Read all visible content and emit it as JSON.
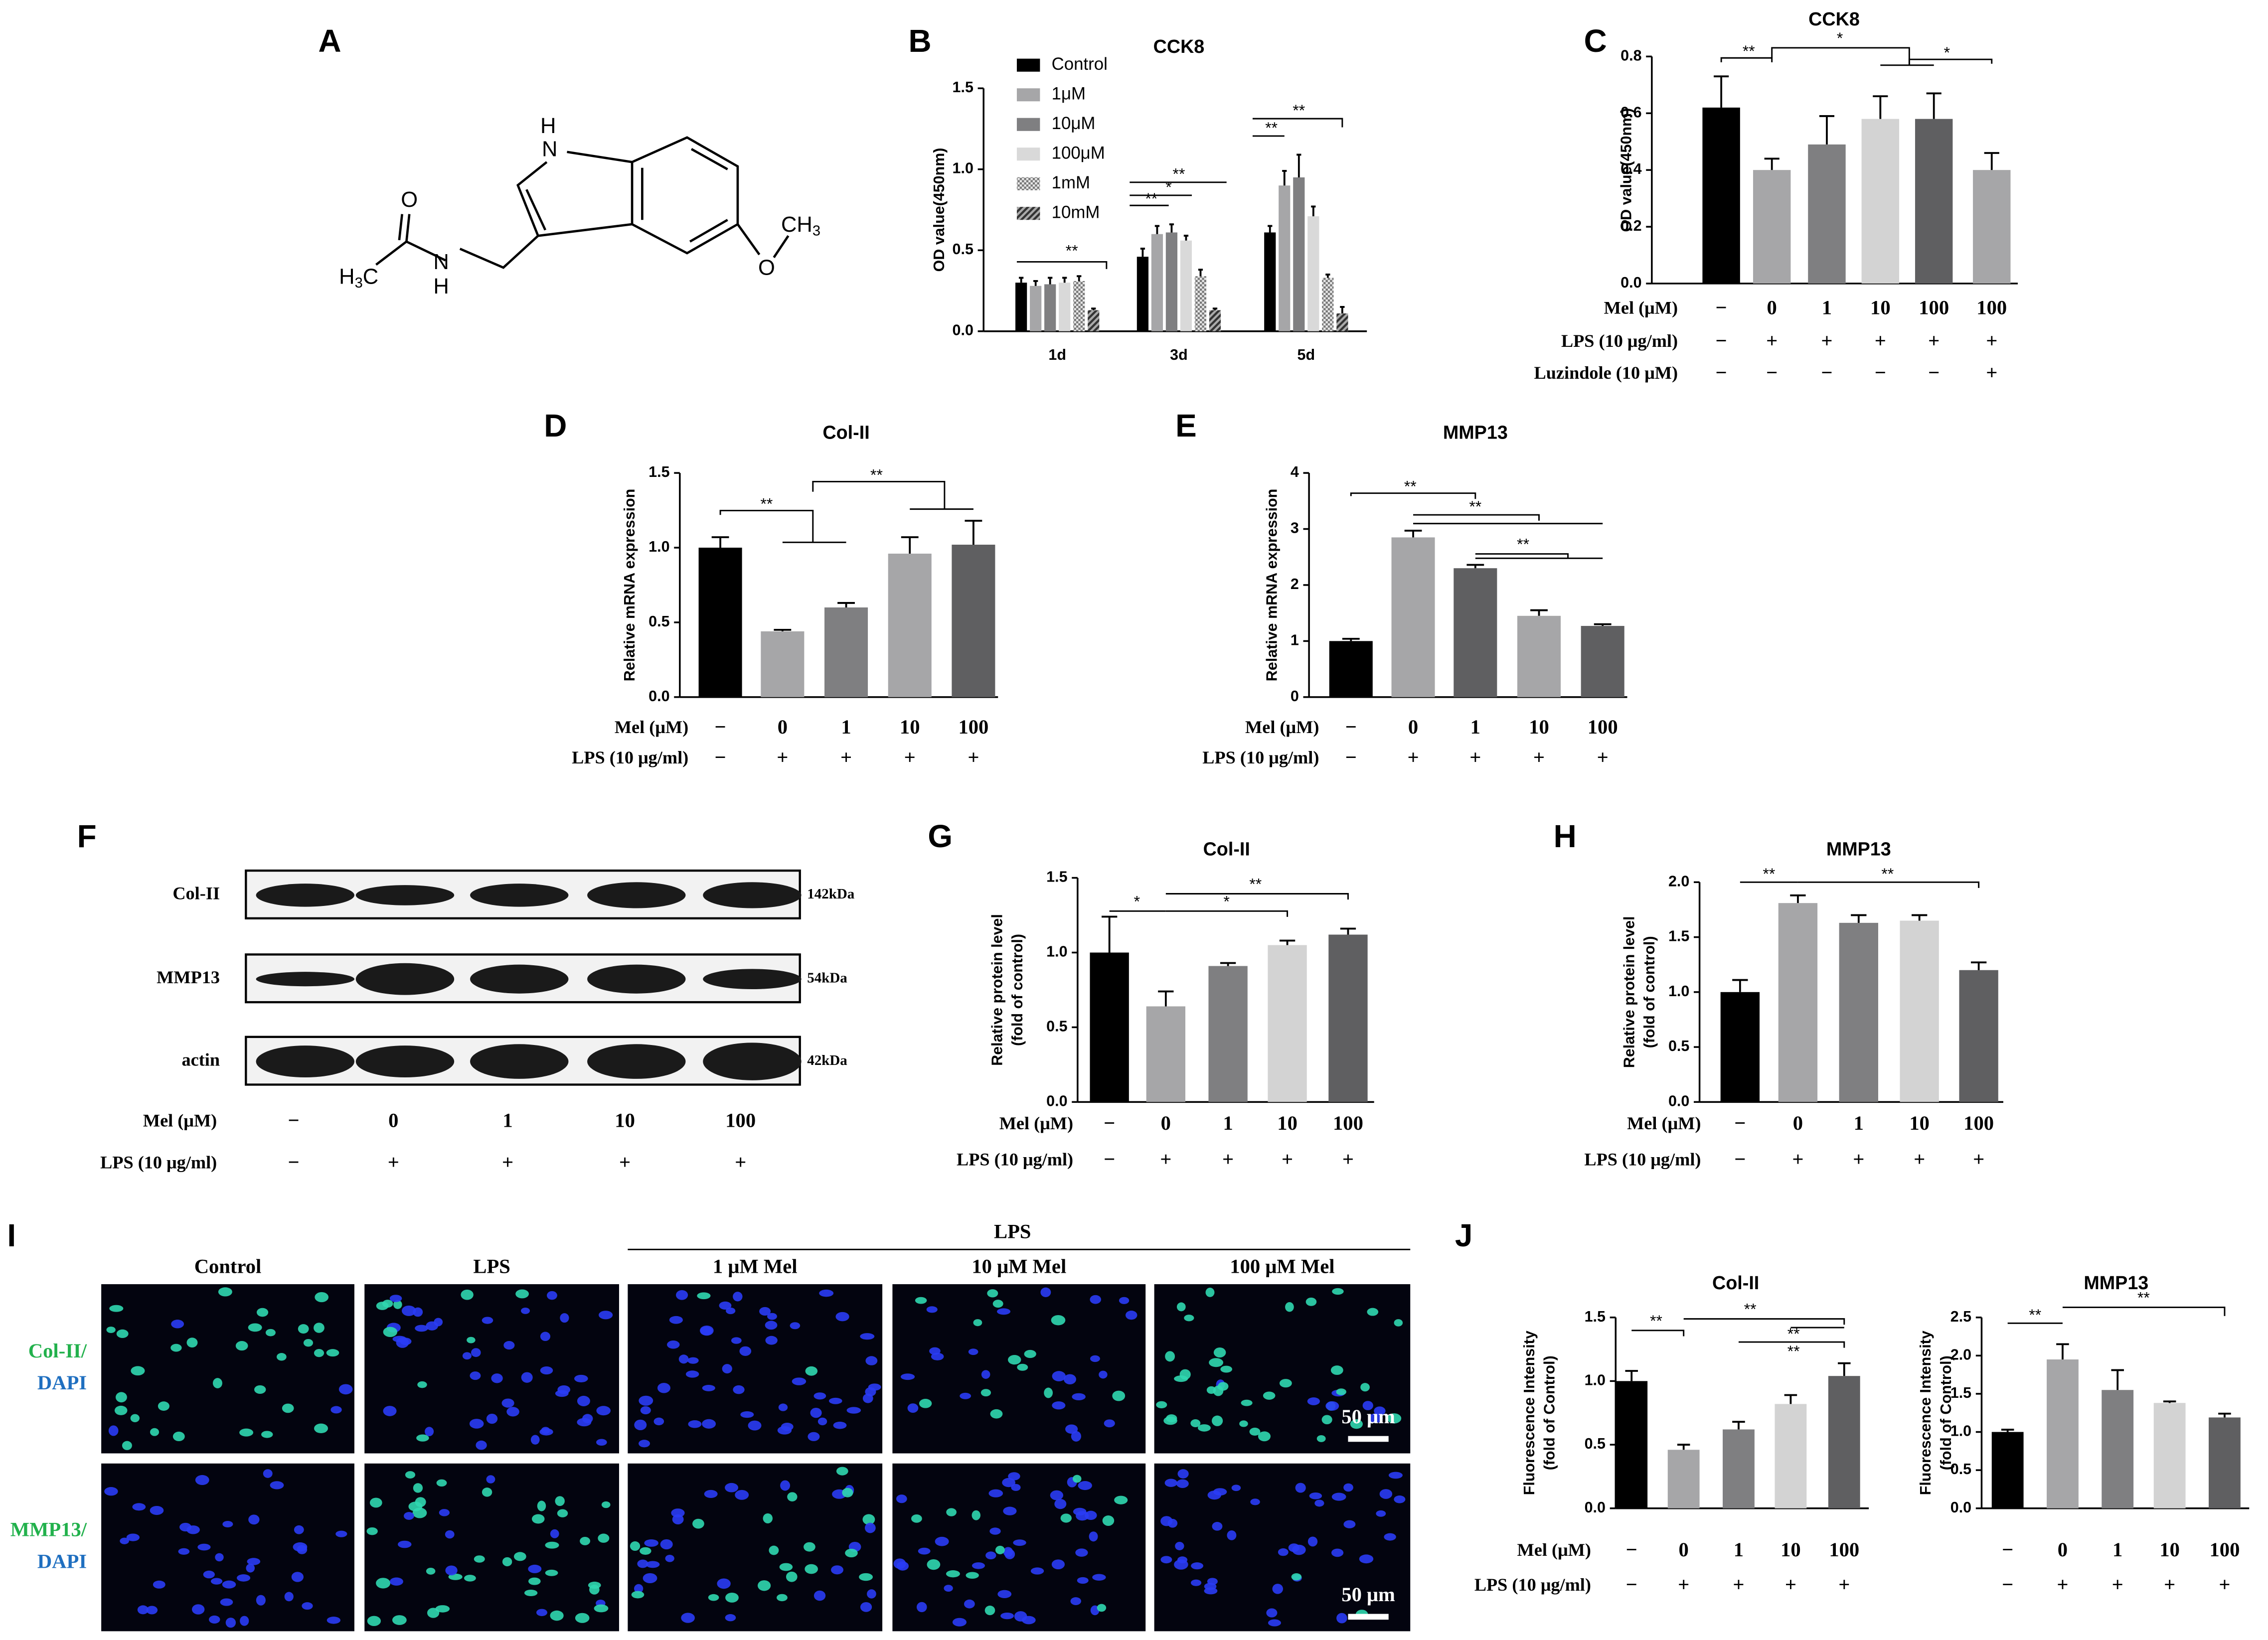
{
  "chart_data": [
    {
      "type": "bar",
      "title": "CCK8",
      "ylabel": "OD value(450nm)",
      "categories": [
        "1d",
        "3d",
        "5d"
      ],
      "series": [
        {
          "name": "Control",
          "color": "#000000",
          "values": [
            0.3,
            0.46,
            0.61
          ],
          "errors": [
            0.03,
            0.05,
            0.04
          ]
        },
        {
          "name": "1μM",
          "color": "#a6a6a8",
          "values": [
            0.28,
            0.6,
            0.9
          ],
          "errors": [
            0.03,
            0.05,
            0.09
          ]
        },
        {
          "name": "10μM",
          "color": "#7f7f81",
          "values": [
            0.29,
            0.61,
            0.95
          ],
          "errors": [
            0.04,
            0.05,
            0.14
          ]
        },
        {
          "name": "100μM",
          "color": "#d9d9d9",
          "values": [
            0.3,
            0.56,
            0.71
          ],
          "errors": [
            0.03,
            0.03,
            0.06
          ]
        },
        {
          "name": "1mM",
          "color": "#9a9a9a",
          "pattern": "crosshatch",
          "values": [
            0.31,
            0.34,
            0.33
          ],
          "errors": [
            0.03,
            0.04,
            0.02
          ]
        },
        {
          "name": "10mM",
          "color": "#555555",
          "pattern": "diagonal",
          "values": [
            0.13,
            0.13,
            0.11
          ],
          "errors": [
            0.01,
            0.01,
            0.04
          ]
        }
      ],
      "ylim": [
        0,
        1.5
      ],
      "yticks": [
        {
          "value": 0,
          "label": "0.0"
        },
        0.5,
        {
          "value": 1,
          "label": "1.0"
        },
        1.5
      ],
      "annotations": [
        "**",
        "**",
        "*",
        "**",
        "**",
        "**"
      ]
    },
    {
      "type": "bar",
      "title": "CCK8",
      "ylabel": "OD value(450nm)",
      "values": [
        0.62,
        0.4,
        0.49,
        0.58,
        0.58,
        0.4
      ],
      "errors": [
        0.11,
        0.04,
        0.1,
        0.08,
        0.09,
        0.06
      ],
      "colors": [
        "#000000",
        "#a6a6a8",
        "#7f7f81",
        "#d3d3d3",
        "#5f5f61",
        "#a6a6a8"
      ],
      "ylim": [
        0,
        0.8
      ],
      "yticks": [
        {
          "value": 0,
          "label": "0.0"
        },
        0.2,
        0.4,
        0.6,
        0.8
      ],
      "conditions": [
        {
          "label": "Mel (μM)",
          "cells": [
            "−",
            "0",
            "1",
            "10",
            "100",
            "100"
          ]
        },
        {
          "label": "LPS (10 μg/ml)",
          "cells": [
            "−",
            "+",
            "+",
            "+",
            "+",
            "+"
          ]
        },
        {
          "label": "Luzindole (10 μM)",
          "cells": [
            "−",
            "−",
            "−",
            "−",
            "−",
            "+"
          ]
        }
      ],
      "annotations": [
        "**",
        "*",
        "*"
      ]
    },
    {
      "type": "bar",
      "title": "Col-II",
      "ylabel": "Relative mRNA expression",
      "values": [
        1.0,
        0.44,
        0.6,
        0.96,
        1.02
      ],
      "errors": [
        0.07,
        0.01,
        0.03,
        0.11,
        0.16
      ],
      "colors": [
        "#000000",
        "#a6a6a8",
        "#7f7f81",
        "#a6a6a8",
        "#5f5f61"
      ],
      "ylim": [
        0,
        1.5
      ],
      "yticks": [
        {
          "value": 0,
          "label": "0.0"
        },
        0.5,
        {
          "value": 1,
          "label": "1.0"
        },
        1.5
      ],
      "conditions": [
        {
          "label": "Mel (μM)",
          "cells": [
            "−",
            "0",
            "1",
            "10",
            "100"
          ]
        },
        {
          "label": "LPS (10 μg/ml)",
          "cells": [
            "−",
            "+",
            "+",
            "+",
            "+"
          ]
        }
      ],
      "annotations": [
        "**",
        "**"
      ]
    },
    {
      "type": "bar",
      "title": "MMP13",
      "ylabel": "Relative mRNA expression",
      "values": [
        1.0,
        2.85,
        2.3,
        1.45,
        1.27
      ],
      "errors": [
        0.04,
        0.12,
        0.06,
        0.1,
        0.03
      ],
      "colors": [
        "#000000",
        "#a6a6a8",
        "#5f5f61",
        "#a6a6a8",
        "#5f5f61"
      ],
      "ylim": [
        0,
        4
      ],
      "yticks": [
        0,
        1,
        2,
        3,
        4
      ],
      "conditions": [
        {
          "label": "Mel (μM)",
          "cells": [
            "−",
            "0",
            "1",
            "10",
            "100"
          ]
        },
        {
          "label": "LPS (10 μg/ml)",
          "cells": [
            "−",
            "+",
            "+",
            "+",
            "+"
          ]
        }
      ],
      "annotations": [
        "**",
        "**",
        "**"
      ]
    },
    {
      "type": "bar",
      "title": "Col-II",
      "ylabel": [
        "Relative protein level",
        "(fold of control)"
      ],
      "values": [
        1.0,
        0.64,
        0.91,
        1.05,
        1.12
      ],
      "errors": [
        0.24,
        0.1,
        0.02,
        0.03,
        0.04
      ],
      "colors": [
        "#000000",
        "#a6a6a8",
        "#7f7f81",
        "#d3d3d3",
        "#5f5f61"
      ],
      "ylim": [
        0,
        1.5
      ],
      "yticks": [
        {
          "value": 0,
          "label": "0.0"
        },
        0.5,
        {
          "value": 1,
          "label": "1.0"
        },
        1.5
      ],
      "conditions": [
        {
          "label": "Mel (μM)",
          "cells": [
            "−",
            "0",
            "1",
            "10",
            "100"
          ]
        },
        {
          "label": "LPS (10 μg/ml)",
          "cells": [
            "−",
            "+",
            "+",
            "+",
            "+"
          ]
        }
      ],
      "annotations": [
        "*",
        "**",
        "*"
      ]
    },
    {
      "type": "bar",
      "title": "MMP13",
      "ylabel": [
        "Relative protein level",
        "(fold of control)"
      ],
      "values": [
        1.0,
        1.81,
        1.63,
        1.65,
        1.2
      ],
      "errors": [
        0.11,
        0.07,
        0.07,
        0.05,
        0.07
      ],
      "colors": [
        "#000000",
        "#a6a6a8",
        "#7f7f81",
        "#d3d3d3",
        "#5f5f61"
      ],
      "ylim": [
        0,
        2
      ],
      "yticks": [
        {
          "value": 0,
          "label": "0.0"
        },
        0.5,
        {
          "value": 1,
          "label": "1.0"
        },
        1.5,
        {
          "value": 2,
          "label": "2.0"
        }
      ],
      "conditions": [
        {
          "label": "Mel (μM)",
          "cells": [
            "−",
            "0",
            "1",
            "10",
            "100"
          ]
        },
        {
          "label": "LPS (10 μg/ml)",
          "cells": [
            "−",
            "+",
            "+",
            "+",
            "+"
          ]
        }
      ],
      "annotations": [
        "**",
        "**"
      ]
    },
    {
      "type": "bar",
      "title": "Col-II",
      "ylabel": [
        "Fluorescence Intensity",
        "(fold of Control)"
      ],
      "values": [
        1.0,
        0.46,
        0.62,
        0.82,
        1.04
      ],
      "errors": [
        0.08,
        0.04,
        0.06,
        0.07,
        0.1
      ],
      "colors": [
        "#000000",
        "#a6a6a8",
        "#7f7f81",
        "#d3d3d3",
        "#5f5f61"
      ],
      "ylim": [
        0,
        1.5
      ],
      "yticks": [
        {
          "value": 0,
          "label": "0.0"
        },
        0.5,
        {
          "value": 1,
          "label": "1.0"
        },
        1.5
      ],
      "conditions": [
        {
          "label": "Mel (μM)",
          "cells": [
            "−",
            "0",
            "1",
            "10",
            "100"
          ]
        },
        {
          "label": "LPS (10 μg/ml)",
          "cells": [
            "−",
            "+",
            "+",
            "+",
            "+"
          ]
        }
      ],
      "annotations": [
        "**",
        "**",
        "**",
        "**"
      ]
    },
    {
      "type": "bar",
      "title": "MMP13",
      "ylabel": [
        "Fluorescence Intensity",
        "(fold of Control)"
      ],
      "values": [
        1.0,
        1.95,
        1.55,
        1.38,
        1.19
      ],
      "errors": [
        0.03,
        0.2,
        0.26,
        0.02,
        0.05
      ],
      "colors": [
        "#000000",
        "#a6a6a8",
        "#7f7f81",
        "#d3d3d3",
        "#5f5f61"
      ],
      "ylim": [
        0,
        2.5
      ],
      "yticks": [
        {
          "value": 0,
          "label": "0.0"
        },
        0.5,
        {
          "value": 1,
          "label": "1.0"
        },
        1.5,
        {
          "value": 2,
          "label": "2.0"
        },
        2.5
      ],
      "conditions": [
        {
          "cells": [
            "−",
            "0",
            "1",
            "10",
            "100"
          ]
        },
        {
          "cells": [
            "−",
            "+",
            "+",
            "+",
            "+"
          ]
        }
      ],
      "annotations": [
        "**",
        "**"
      ]
    }
  ],
  "panel_labels": [
    "A",
    "B",
    "C",
    "D",
    "E",
    "F",
    "G",
    "H",
    "I",
    "J"
  ],
  "structure": {
    "atoms": [
      "H",
      "N",
      "O",
      "H",
      "3",
      "C",
      "N",
      "H",
      "O",
      "CH",
      "3"
    ]
  },
  "blot": {
    "proteins": [
      "Col-II",
      "MMP13",
      "actin"
    ],
    "sizes": [
      "142kDa",
      "54kDa",
      "42kDa"
    ],
    "conditions": [
      {
        "label": "Mel (μM)",
        "cells": [
          "−",
          "0",
          "1",
          "10",
          "100"
        ]
      },
      {
        "label": "LPS (10 μg/ml)",
        "cells": [
          "−",
          "+",
          "+",
          "+",
          "+"
        ]
      }
    ]
  },
  "images": {
    "group": "LPS",
    "columns": [
      "Control",
      "LPS",
      "1 μM Mel",
      "10 μM Mel",
      "100 μM Mel"
    ],
    "rows": [
      [
        "Col-II/",
        "DAPI"
      ],
      [
        "MMP13/",
        "DAPI"
      ]
    ],
    "scale_bars": [
      "50 μm",
      "50 μm"
    ]
  }
}
